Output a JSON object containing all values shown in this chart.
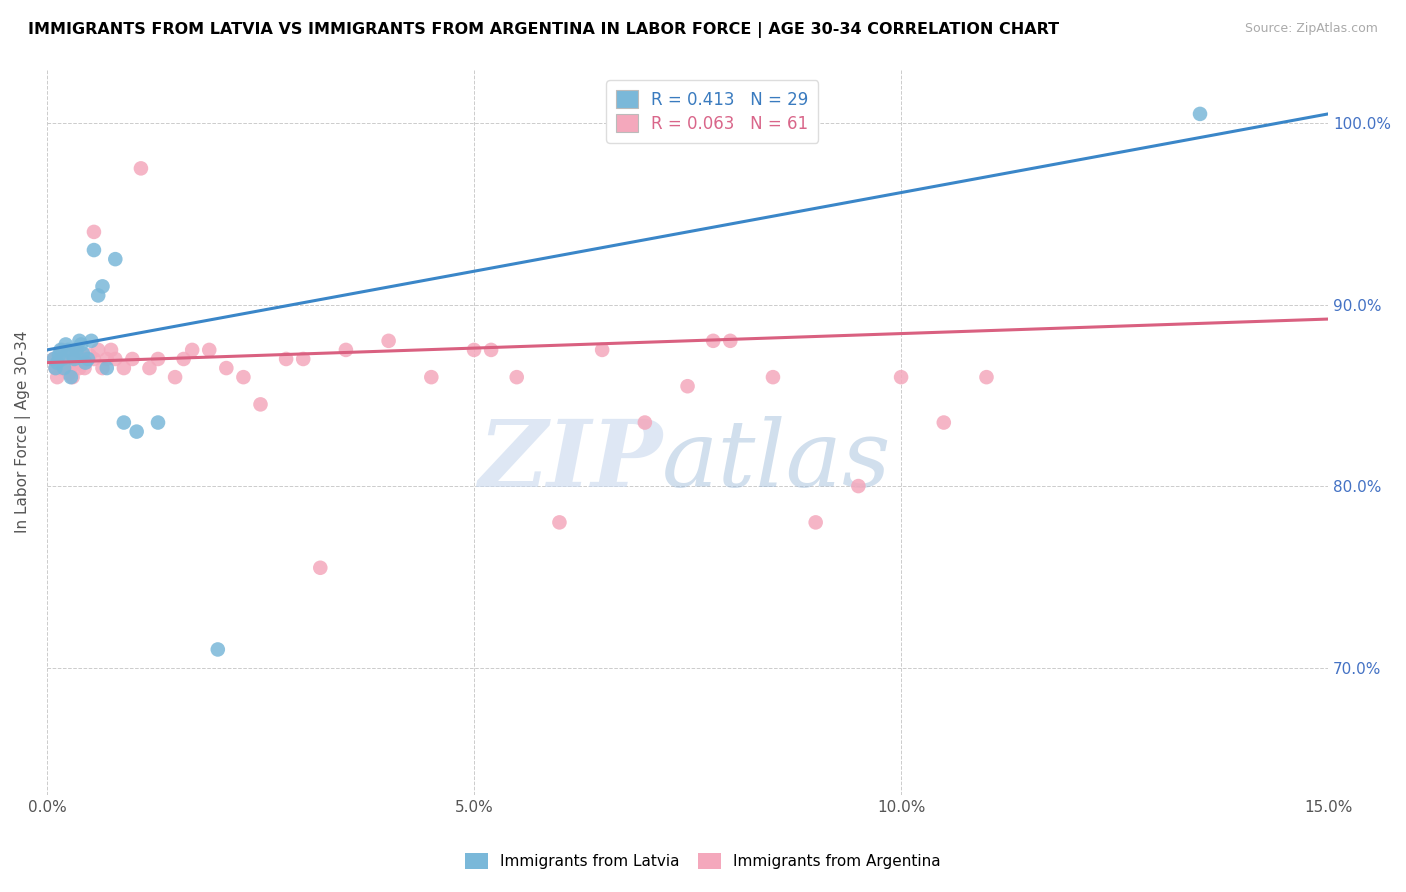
{
  "title": "IMMIGRANTS FROM LATVIA VS IMMIGRANTS FROM ARGENTINA IN LABOR FORCE | AGE 30-34 CORRELATION CHART",
  "source": "Source: ZipAtlas.com",
  "ylabel": "In Labor Force | Age 30-34",
  "xlim": [
    0.0,
    15.0
  ],
  "ylim": [
    63.0,
    103.0
  ],
  "xticks": [
    0.0,
    5.0,
    10.0,
    15.0
  ],
  "xticklabels": [
    "0.0%",
    "5.0%",
    "10.0%",
    "15.0%"
  ],
  "ytick_positions": [
    70.0,
    80.0,
    90.0,
    100.0
  ],
  "ytick_labels": [
    "70.0%",
    "80.0%",
    "90.0%",
    "100.0%"
  ],
  "latvia_color": "#7ab8d9",
  "argentina_color": "#f4a8bc",
  "latvia_line_color": "#3a86c8",
  "argentina_line_color": "#d96080",
  "legend_text_latvia": "R = 0.413   N = 29",
  "legend_text_argentina": "R = 0.063   N = 61",
  "legend_color_latvia": "#3a7bbf",
  "legend_color_argentina": "#d9668a",
  "latvia_x": [
    0.08,
    0.1,
    0.12,
    0.14,
    0.16,
    0.18,
    0.2,
    0.22,
    0.25,
    0.28,
    0.3,
    0.32,
    0.35,
    0.38,
    0.4,
    0.42,
    0.45,
    0.48,
    0.52,
    0.55,
    0.6,
    0.65,
    0.7,
    0.8,
    0.9,
    1.05,
    1.3,
    2.0,
    13.5
  ],
  "latvia_y": [
    87.0,
    86.5,
    86.8,
    87.2,
    87.5,
    87.0,
    86.5,
    87.8,
    87.5,
    86.0,
    87.2,
    87.0,
    87.5,
    88.0,
    87.8,
    87.3,
    86.8,
    87.0,
    88.0,
    93.0,
    90.5,
    91.0,
    86.5,
    92.5,
    83.5,
    83.0,
    83.5,
    71.0,
    100.5
  ],
  "argentina_x": [
    0.08,
    0.1,
    0.12,
    0.14,
    0.16,
    0.18,
    0.2,
    0.22,
    0.24,
    0.26,
    0.28,
    0.3,
    0.32,
    0.34,
    0.36,
    0.38,
    0.4,
    0.42,
    0.44,
    0.46,
    0.5,
    0.55,
    0.6,
    0.65,
    0.7,
    0.75,
    0.8,
    0.9,
    1.0,
    1.1,
    1.2,
    1.3,
    1.5,
    1.7,
    1.9,
    2.1,
    2.3,
    2.5,
    2.8,
    3.0,
    3.5,
    4.0,
    4.5,
    5.0,
    5.5,
    6.0,
    6.5,
    7.0,
    7.5,
    8.0,
    8.5,
    9.0,
    9.5,
    10.0,
    10.5,
    11.0,
    5.2,
    7.8,
    3.2,
    1.6,
    0.55
  ],
  "argentina_y": [
    87.0,
    86.5,
    86.0,
    87.0,
    86.5,
    87.5,
    87.0,
    86.5,
    86.8,
    86.2,
    86.5,
    86.0,
    87.2,
    87.5,
    87.0,
    86.5,
    86.8,
    87.0,
    86.5,
    87.0,
    87.2,
    87.0,
    87.5,
    86.5,
    87.0,
    87.5,
    87.0,
    86.5,
    87.0,
    97.5,
    86.5,
    87.0,
    86.0,
    87.5,
    87.5,
    86.5,
    86.0,
    84.5,
    87.0,
    87.0,
    87.5,
    88.0,
    86.0,
    87.5,
    86.0,
    78.0,
    87.5,
    83.5,
    85.5,
    88.0,
    86.0,
    78.0,
    80.0,
    86.0,
    83.5,
    86.0,
    87.5,
    88.0,
    75.5,
    87.0,
    94.0
  ],
  "latvia_trend_x": [
    0.0,
    15.0
  ],
  "latvia_trend_y": [
    87.5,
    100.5
  ],
  "argentina_trend_x": [
    0.0,
    15.0
  ],
  "argentina_trend_y": [
    86.8,
    89.2
  ]
}
